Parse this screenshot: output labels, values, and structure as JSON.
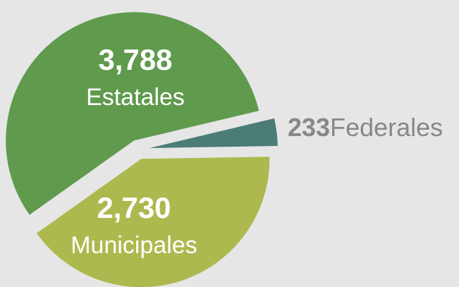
{
  "chart_data": {
    "type": "pie",
    "categories": [
      "Estatales",
      "Municipales",
      "Federales"
    ],
    "values": [
      3788,
      2730,
      233
    ],
    "value_labels": [
      "3,788",
      "2,730",
      "233"
    ],
    "colors": [
      "#5f9a4d",
      "#adb94f",
      "#4b7c76"
    ]
  }
}
